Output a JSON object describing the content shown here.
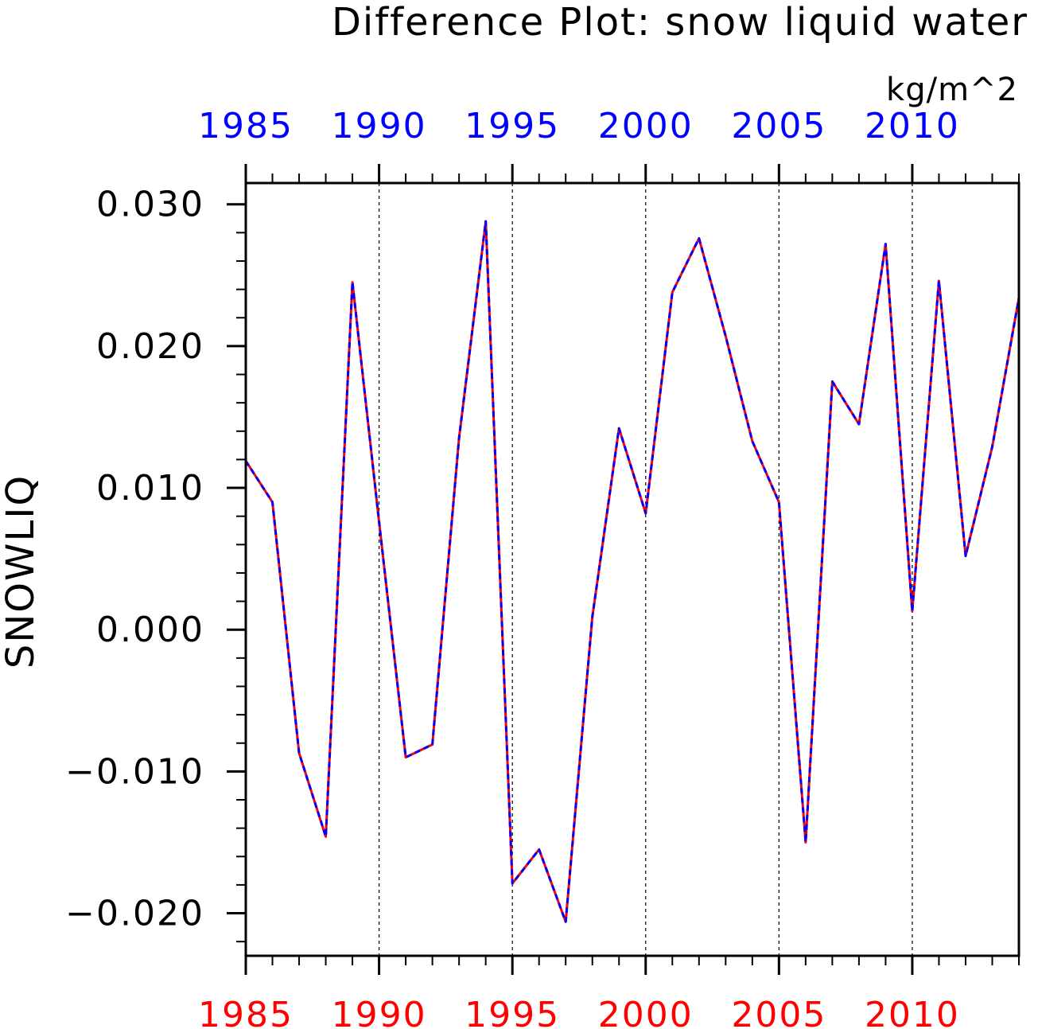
{
  "chart_data": {
    "type": "line",
    "title": "Difference Plot: snow liquid water",
    "units": "kg/m^2",
    "ylabel": "SNOWLIQ",
    "xlabel": "",
    "xlim": [
      1985,
      2014
    ],
    "ylim": [
      -0.023,
      0.0315
    ],
    "grid": "vertical dashed lines at major x ticks",
    "x_major_ticks": [
      1985,
      1990,
      1995,
      2000,
      2005,
      2010
    ],
    "x_tick_labels_top": [
      "1985",
      "1990",
      "1995",
      "2000",
      "2005",
      "2010"
    ],
    "x_tick_labels_bottom": [
      "1985",
      "1990",
      "1995",
      "2000",
      "2005",
      "2010"
    ],
    "y_major_ticks": [
      -0.02,
      -0.01,
      0.0,
      0.01,
      0.02,
      0.03
    ],
    "y_tick_labels": [
      "−0.020",
      "−0.010",
      "0.000",
      "0.010",
      "0.020",
      "0.030"
    ],
    "top_axis_color": "#0000ff",
    "bottom_axis_color": "#ff0000",
    "x": [
      1985,
      1986,
      1987,
      1988,
      1989,
      1990,
      1991,
      1992,
      1993,
      1994,
      1995,
      1996,
      1997,
      1998,
      1999,
      2000,
      2001,
      2002,
      2003,
      2004,
      2005,
      2006,
      2007,
      2008,
      2009,
      2010,
      2011,
      2012,
      2013,
      2014
    ],
    "series": [
      {
        "color": "#ff0000",
        "style": "solid",
        "values": [
          0.0119,
          0.009,
          -0.0087,
          -0.0146,
          0.0245,
          0.0076,
          -0.009,
          -0.0081,
          0.0135,
          0.0288,
          -0.0179,
          -0.0155,
          -0.0206,
          0.0009,
          0.0142,
          0.0082,
          0.0238,
          0.0276,
          0.0207,
          0.0133,
          0.009,
          -0.015,
          0.0175,
          0.0145,
          0.0272,
          0.0013,
          0.0246,
          0.0052,
          0.0129,
          0.0234
        ]
      },
      {
        "color": "#0000ff",
        "style": "dashed",
        "values": [
          0.0119,
          0.009,
          -0.0087,
          -0.0146,
          0.0245,
          0.0076,
          -0.009,
          -0.0081,
          0.0135,
          0.0288,
          -0.0179,
          -0.0155,
          -0.0206,
          0.0009,
          0.0142,
          0.0082,
          0.0238,
          0.0276,
          0.0207,
          0.0133,
          0.009,
          -0.015,
          0.0175,
          0.0145,
          0.0272,
          0.0013,
          0.0246,
          0.0052,
          0.0129,
          0.0234
        ]
      }
    ]
  }
}
